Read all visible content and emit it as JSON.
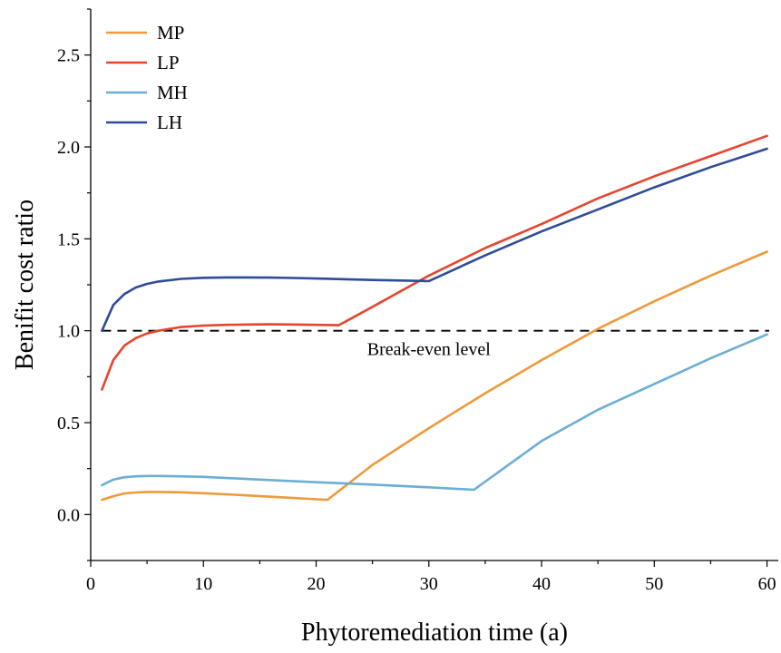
{
  "chart_data": {
    "type": "line",
    "title": "",
    "xlabel": "Phytoremediation time (a)",
    "ylabel": "Benifit cost ratio",
    "xlim": [
      0,
      61
    ],
    "ylim": [
      -0.25,
      2.75
    ],
    "xticks": [
      0,
      10,
      20,
      30,
      40,
      50,
      60
    ],
    "yticks": [
      0.0,
      0.5,
      1.0,
      1.5,
      2.0,
      2.5
    ],
    "xtick_labels": [
      "0",
      "10",
      "20",
      "30",
      "40",
      "50",
      "60"
    ],
    "ytick_labels": [
      "0.0",
      "0.5",
      "1.0",
      "1.5",
      "2.0",
      "2.5"
    ],
    "grid": false,
    "legend_position": "top-left",
    "reference_line": {
      "y": 1.0,
      "style": "dashed",
      "color": "#000000",
      "label": "Break-even level"
    },
    "series": [
      {
        "name": "MP",
        "color": "#EE9A3A",
        "x": [
          1,
          2,
          3,
          4,
          5,
          6,
          8,
          10,
          12,
          14,
          16,
          18,
          20,
          21,
          25,
          30,
          35,
          40,
          45,
          50,
          55,
          60
        ],
        "y": [
          0.08,
          0.1,
          0.115,
          0.12,
          0.123,
          0.123,
          0.121,
          0.116,
          0.11,
          0.104,
          0.097,
          0.09,
          0.083,
          0.08,
          0.27,
          0.47,
          0.66,
          0.84,
          1.01,
          1.16,
          1.3,
          1.43
        ]
      },
      {
        "name": "LP",
        "color": "#E5452E",
        "x": [
          1,
          2,
          3,
          4,
          5,
          6,
          7,
          8,
          10,
          12,
          14,
          16,
          18,
          20,
          22,
          25,
          30,
          35,
          40,
          45,
          50,
          55,
          60
        ],
        "y": [
          0.68,
          0.84,
          0.92,
          0.96,
          0.985,
          1.0,
          1.01,
          1.02,
          1.028,
          1.032,
          1.034,
          1.035,
          1.034,
          1.032,
          1.03,
          1.13,
          1.3,
          1.45,
          1.58,
          1.72,
          1.84,
          1.95,
          2.06
        ]
      },
      {
        "name": "MH",
        "color": "#6BAED6",
        "x": [
          1,
          2,
          3,
          4,
          5,
          6,
          8,
          10,
          15,
          20,
          25,
          30,
          34,
          40,
          45,
          50,
          55,
          60
        ],
        "y": [
          0.16,
          0.19,
          0.203,
          0.208,
          0.21,
          0.21,
          0.208,
          0.205,
          0.19,
          0.176,
          0.163,
          0.148,
          0.135,
          0.4,
          0.57,
          0.71,
          0.85,
          0.98
        ]
      },
      {
        "name": "LH",
        "color": "#2F4C9A",
        "x": [
          1,
          2,
          3,
          4,
          5,
          6,
          8,
          10,
          12,
          14,
          16,
          18,
          20,
          25,
          30,
          35,
          40,
          45,
          50,
          55,
          60
        ],
        "y": [
          1.0,
          1.14,
          1.2,
          1.235,
          1.255,
          1.268,
          1.282,
          1.288,
          1.29,
          1.29,
          1.289,
          1.287,
          1.284,
          1.276,
          1.27,
          1.41,
          1.54,
          1.66,
          1.78,
          1.89,
          1.99
        ]
      }
    ]
  }
}
